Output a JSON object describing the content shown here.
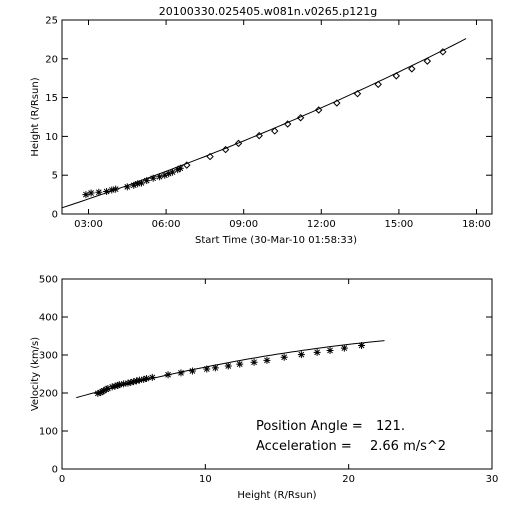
{
  "chart_data": [
    {
      "type": "scatter",
      "title": "20100330.025405.w081n.v0265.p121g",
      "xlabel": "Start Time (30-Mar-10 01:58:33)",
      "ylabel": "Height (R/Rsun)",
      "x_ticks": [
        "03:00",
        "06:00",
        "09:00",
        "12:00",
        "15:00",
        "18:00"
      ],
      "x_tick_hours": [
        3,
        6,
        9,
        12,
        15,
        18
      ],
      "xlim_hours": [
        1.9756,
        18.6
      ],
      "y_ticks": [
        0,
        5,
        10,
        15,
        20,
        25
      ],
      "ylim": [
        0,
        25
      ],
      "series": [
        {
          "marker": "star",
          "x_hours": [
            2.9,
            3.1,
            3.4,
            3.7,
            3.9,
            4.05,
            4.5,
            4.75,
            4.9,
            5.05,
            5.25,
            5.5,
            5.75,
            5.95,
            6.1,
            6.25,
            6.45,
            6.55
          ],
          "y": [
            2.5,
            2.7,
            2.8,
            2.9,
            3.1,
            3.2,
            3.5,
            3.7,
            3.9,
            4.0,
            4.3,
            4.6,
            4.8,
            5.0,
            5.2,
            5.4,
            5.7,
            5.9
          ]
        },
        {
          "marker": "diamond",
          "x_hours": [
            6.8,
            7.7,
            8.3,
            8.8,
            9.6,
            10.2,
            10.7,
            11.2,
            11.9,
            12.6,
            13.4,
            14.2,
            14.9,
            15.5,
            16.1,
            16.7
          ],
          "y": [
            6.3,
            7.4,
            8.3,
            9.1,
            10.1,
            10.7,
            11.6,
            12.4,
            13.4,
            14.3,
            15.5,
            16.7,
            17.8,
            18.7,
            19.7,
            20.9
          ]
        }
      ],
      "fit_line": {
        "x_hours": [
          1.97,
          17.6
        ],
        "y": [
          0.8,
          22.6
        ],
        "curvature": 1.2
      }
    },
    {
      "type": "scatter",
      "xlabel": "Height (R/Rsun)",
      "ylabel": "Velocity (km/s)",
      "x_ticks": [
        0,
        10,
        20,
        30
      ],
      "xlim": [
        0,
        30
      ],
      "y_ticks": [
        0,
        100,
        200,
        300,
        400,
        500
      ],
      "ylim": [
        0,
        500
      ],
      "series": [
        {
          "marker": "star",
          "x": [
            2.5,
            2.7,
            2.8,
            2.9,
            3.1,
            3.2,
            3.5,
            3.7,
            3.9,
            4.0,
            4.3,
            4.6,
            4.8,
            5.0,
            5.2,
            5.4,
            5.7,
            5.9,
            6.3,
            7.4,
            8.3,
            9.1,
            10.1,
            10.7,
            11.6,
            12.4,
            13.4,
            14.3,
            15.5,
            16.7,
            17.8,
            18.7,
            19.7,
            20.9
          ],
          "y": [
            199,
            201,
            204,
            206,
            210,
            212,
            216,
            218,
            220,
            222,
            224,
            226,
            228,
            230,
            232,
            234,
            236,
            238,
            241,
            248,
            253,
            258,
            263,
            266,
            271,
            276,
            281,
            286,
            294,
            301,
            307,
            312,
            318,
            325
          ]
        }
      ],
      "fit_line": {
        "x": [
          1.0,
          22.5
        ],
        "y": [
          188,
          338
        ],
        "curvature": -18
      },
      "annotations": [
        {
          "label": "Position Angle =",
          "value": "121."
        },
        {
          "label": "Acceleration =",
          "value": "2.66 m/s^2"
        }
      ]
    }
  ]
}
